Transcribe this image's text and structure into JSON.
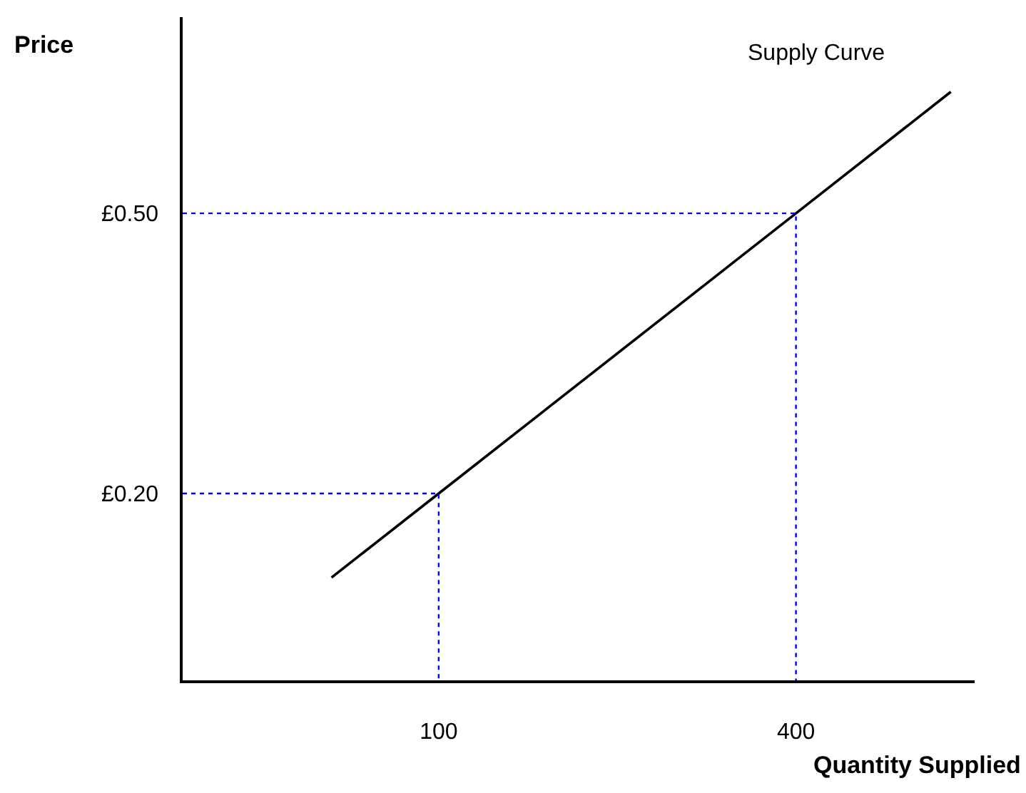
{
  "chart_data": {
    "type": "line",
    "xlabel": "Quantity Supplied",
    "ylabel": "Price",
    "xlim": [
      -115,
      550
    ],
    "ylim": [
      0,
      0.71
    ],
    "xticks": [
      100,
      400
    ],
    "yticks": [
      {
        "value": 0.2,
        "label": "£0.20"
      },
      {
        "value": 0.5,
        "label": "£0.50"
      }
    ],
    "legend": false,
    "marker": "none",
    "series": [
      {
        "name": "Supply Curve",
        "x": [
          10,
          100,
          400,
          530
        ],
        "values": [
          0.11,
          0.2,
          0.5,
          0.63
        ],
        "color": "#000000",
        "line_style": "solid"
      },
      {
        "x": [
          -115,
          100,
          100
        ],
        "values": [
          0.2,
          0.2,
          0
        ],
        "color": "#0000ff",
        "line_style": "dotted"
      },
      {
        "x": [
          -115,
          400,
          400
        ],
        "values": [
          0.5,
          0.5,
          0
        ],
        "color": "#0000ff",
        "line_style": "dotted"
      }
    ]
  }
}
